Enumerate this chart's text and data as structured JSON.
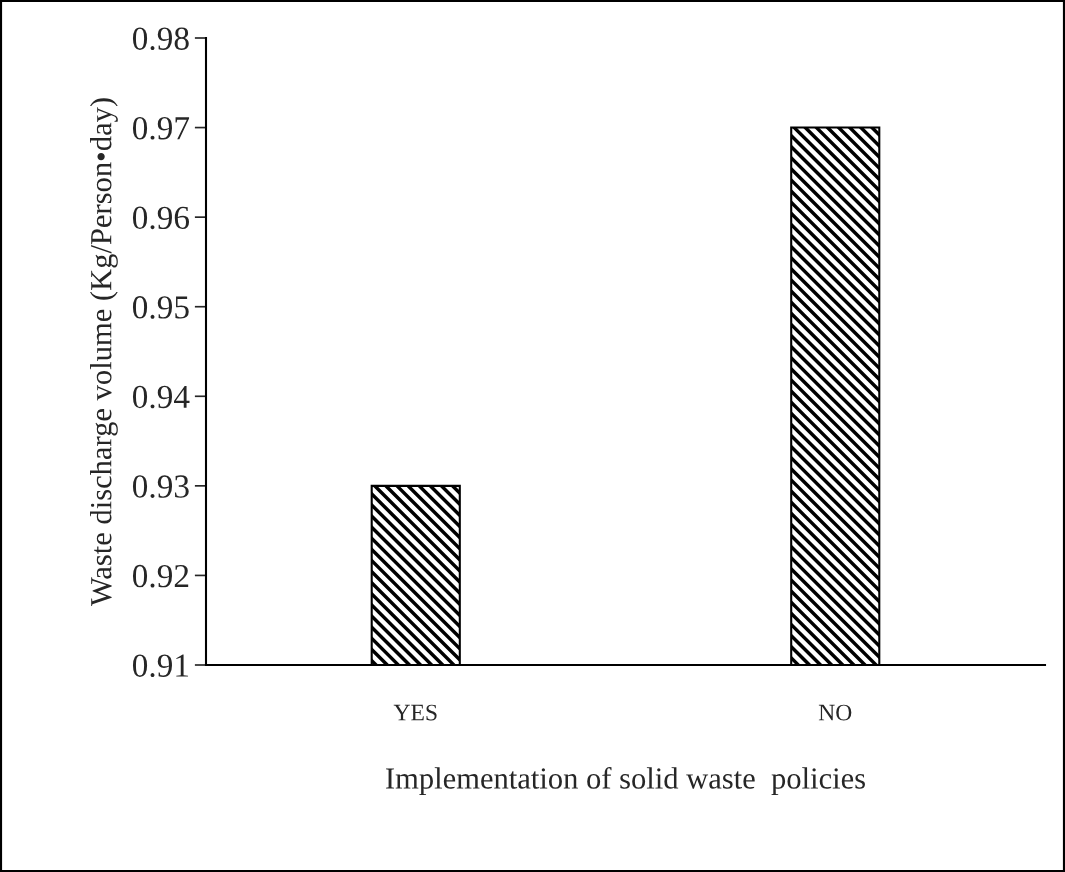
{
  "chart_data": {
    "type": "bar",
    "xlabel": "Implementation of solid waste  policies",
    "ylabel": "Waste discharge volume (Kg/Person•day)",
    "categories": [
      "YES",
      "NO"
    ],
    "series": [
      {
        "color": "#000000",
        "values": [
          0.93,
          0.97
        ]
      }
    ],
    "ylim": [
      0.91,
      0.98
    ],
    "yticks": [
      0.91,
      0.92,
      0.93,
      0.94,
      0.95,
      0.96,
      0.97,
      0.98
    ],
    "grid": false
  }
}
